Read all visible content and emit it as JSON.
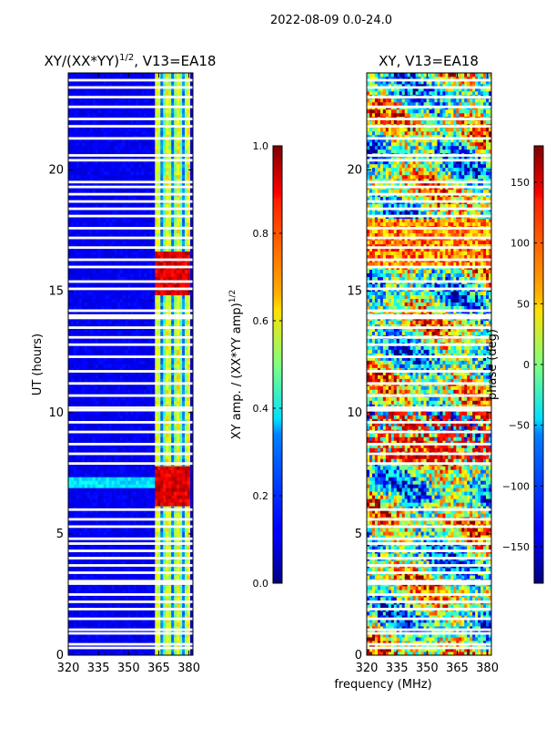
{
  "figure": {
    "suptitle": "2022-08-09 0.0-24.0",
    "shared_xlabel": "frequency (MHz)"
  },
  "chart_data": [
    {
      "type": "heatmap",
      "title_main": "XY/(XX*YY)",
      "title_sup": "1/2",
      "title_rest": ", V13=EA18",
      "xlabel": "",
      "ylabel": "UT (hours)",
      "xlim": [
        320,
        382
      ],
      "ylim": [
        0,
        24
      ],
      "xticks": [
        320,
        335,
        350,
        365,
        380
      ],
      "yticks": [
        0,
        5,
        10,
        15,
        20
      ],
      "colorbar": {
        "label_main": "XY amp. / (XX*YY amp)",
        "label_sup": "1/2",
        "range": [
          0.0,
          1.0
        ],
        "ticks": [
          "0.0",
          "0.2",
          "0.4",
          "0.6",
          "0.8",
          "1.0"
        ],
        "tick_values": [
          0.0,
          0.2,
          0.4,
          0.6,
          0.8,
          1.0
        ],
        "colormap": "jet"
      },
      "active_band_mhz": [
        363,
        381
      ],
      "high_value_hours": [
        [
          6.2,
          7.8
        ],
        [
          14.8,
          16.6
        ]
      ]
    },
    {
      "type": "heatmap",
      "title_main": "XY, V13=EA18",
      "xlabel": "",
      "ylabel": "",
      "xlim": [
        320,
        382
      ],
      "ylim": [
        0,
        24
      ],
      "xticks": [
        320,
        335,
        350,
        365,
        380
      ],
      "yticks": [
        0,
        5,
        10,
        15,
        20
      ],
      "colorbar": {
        "label_main": "phase (deg)",
        "range": [
          -180,
          180
        ],
        "ticks": [
          "−150",
          "−100",
          "−50",
          "0",
          "50",
          "100",
          "150"
        ],
        "tick_values": [
          -150,
          -100,
          -50,
          0,
          50,
          100,
          150
        ],
        "colormap": "jet"
      }
    }
  ],
  "flagged_hours": [
    0.3,
    0.45,
    0.9,
    1.05,
    1.5,
    1.9,
    2.2,
    2.5,
    2.95,
    3.05,
    3.4,
    3.7,
    4.0,
    4.3,
    4.6,
    4.8,
    5.3,
    5.6,
    6.0,
    7.9,
    8.3,
    8.7,
    9.2,
    9.6,
    10.1,
    10.2,
    10.7,
    11.2,
    11.7,
    12.3,
    12.8,
    13.1,
    13.5,
    13.9,
    14.0,
    14.2,
    15.1,
    15.4,
    16.0,
    16.3,
    16.8,
    17.2,
    17.6,
    18.1,
    18.4,
    18.7,
    19.0,
    19.3,
    19.5,
    20.4,
    20.6,
    21.3,
    21.8,
    22.1,
    22.6,
    23.0,
    23.4,
    23.7
  ]
}
